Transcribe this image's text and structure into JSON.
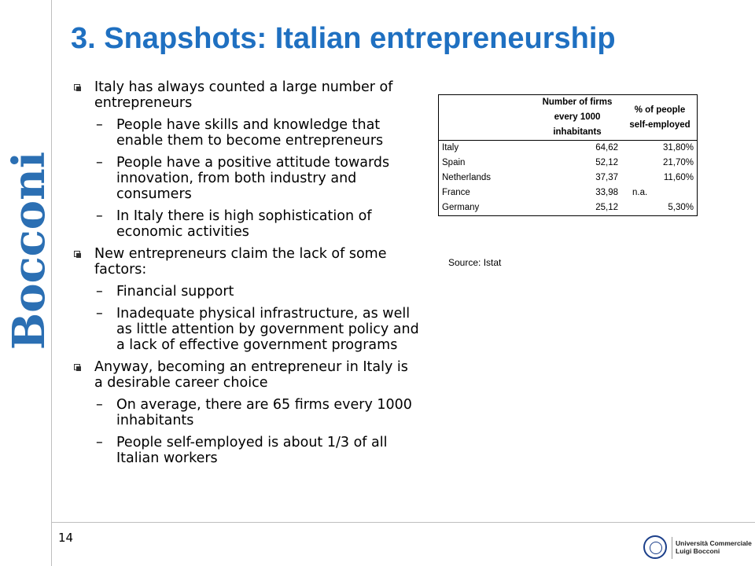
{
  "brand": {
    "vertical_logo": "Bocconi",
    "color": "#2b6fb3"
  },
  "title": "3. Snapshots: Italian entrepreneurship",
  "title_color": "#1f70c1",
  "bullets": [
    {
      "text": "Italy has always counted a large number of entrepreneurs",
      "subs": [
        "People have skills and knowledge that enable them to become entrepreneurs",
        "People have a positive attitude towards innovation, from both industry and consumers",
        "In Italy there is high sophistication of economic activities"
      ]
    },
    {
      "text": "New entrepreneurs claim the lack of some factors:",
      "subs": [
        "Financial support",
        "Inadequate physical infrastructure, as well as little attention by government policy and a lack of effective government programs"
      ]
    },
    {
      "text": "Anyway, becoming an entrepreneur in Italy is a desirable career choice",
      "subs": [
        "On average, there are 65 firms every 1000 inhabitants",
        "People self-employed is about 1/3 of all Italian workers"
      ]
    }
  ],
  "sub_marker": "–",
  "table": {
    "headers": [
      "",
      "Number of firms every 1000 inhabitants",
      "% of people self-employed"
    ],
    "rows": [
      [
        "Italy",
        "64,62",
        "31,80%"
      ],
      [
        "Spain",
        "52,12",
        "21,70%"
      ],
      [
        "Netherlands",
        "37,37",
        "11,60%"
      ],
      [
        "France",
        "33,98",
        "n.a."
      ],
      [
        "Germany",
        "25,12",
        "5,30%"
      ]
    ]
  },
  "source": "Source: Istat",
  "page_number": "14",
  "footer_logo": {
    "line1": "Università Commerciale",
    "line2": "Luigi Bocconi"
  }
}
